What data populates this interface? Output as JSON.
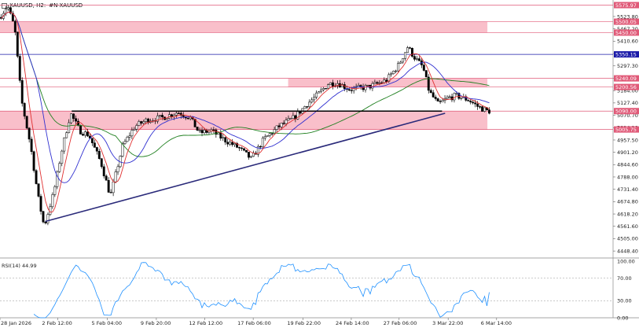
{
  "header": {
    "symbol": "XAUUSD, H2:",
    "description": "#N-XAUUSD"
  },
  "chart_data": {
    "type": "candlestick",
    "symbol": "XAUUSD",
    "timeframe": "H2",
    "x_ticks": [
      "28 Jan 2026",
      "2 Feb 12:00",
      "5 Feb 04:00",
      "9 Feb 20:00",
      "12 Feb 12:00",
      "17 Feb 06:00",
      "19 Feb 22:00",
      "24 Feb 14:00",
      "27 Feb 06:00",
      "3 Mar 22:00",
      "6 Mar 14:00"
    ],
    "y_ticks": [
      5523.8,
      5467.2,
      5410.6,
      5353.9,
      5297.3,
      5240.6,
      5184.0,
      5127.4,
      5070.7,
      5014.1,
      4957.5,
      4901.2,
      4844.6,
      4788.0,
      4731.4,
      4674.8,
      4618.2,
      4561.6,
      4505.0,
      4448.4
    ],
    "ylim": [
      4420,
      5585
    ],
    "levels": [
      {
        "label": "5575.97",
        "value": 5575.97,
        "color": "#e05a78"
      },
      {
        "label": "5500.05",
        "value": 5500.05,
        "color": "#e05a78"
      },
      {
        "label": "5450.00",
        "value": 5450.0,
        "color": "#e05a78"
      },
      {
        "label": "5350.15",
        "value": 5350.15,
        "color": "#1a1aa8"
      },
      {
        "label": "5240.09",
        "value": 5240.09,
        "color": "#e05a78"
      },
      {
        "label": "5200.56",
        "value": 5200.56,
        "color": "#e05a78"
      },
      {
        "label": "5090.00",
        "value": 5090.0,
        "color": "#e05a78"
      },
      {
        "label": "5005.75",
        "value": 5005.75,
        "color": "#e05a78"
      }
    ],
    "zones": [
      {
        "from": 5450.0,
        "to": 5500.0,
        "x_start": 0.0,
        "x_end": 0.795
      },
      {
        "from": 5200.0,
        "to": 5240.0,
        "x_start": 0.47,
        "x_end": 0.795
      },
      {
        "from": 5005.0,
        "to": 5090.0,
        "x_start": 0.0,
        "x_end": 0.795
      }
    ],
    "trendline": {
      "from": {
        "x": 0.074,
        "y": 4584
      },
      "to": {
        "x": 0.726,
        "y": 5080
      },
      "color": "#2a2a7a"
    },
    "resistance_line": {
      "y": 5090,
      "x_start": 0.117,
      "x_end": 0.721,
      "color": "#000000"
    },
    "rsi": {
      "label": "RSI(14) 44.99",
      "period": 14,
      "value": 44.99,
      "levels": [
        100.0,
        70.0,
        30.0,
        0.0
      ],
      "tick_labels": [
        "100.00",
        "70.00",
        "30.00",
        "0.00"
      ]
    },
    "colors": {
      "candles": "#000000",
      "ma_fast": "#e03030",
      "ma_mid": "#3030d0",
      "ma_slow": "#208020",
      "rsi": "#1e90ff"
    }
  }
}
